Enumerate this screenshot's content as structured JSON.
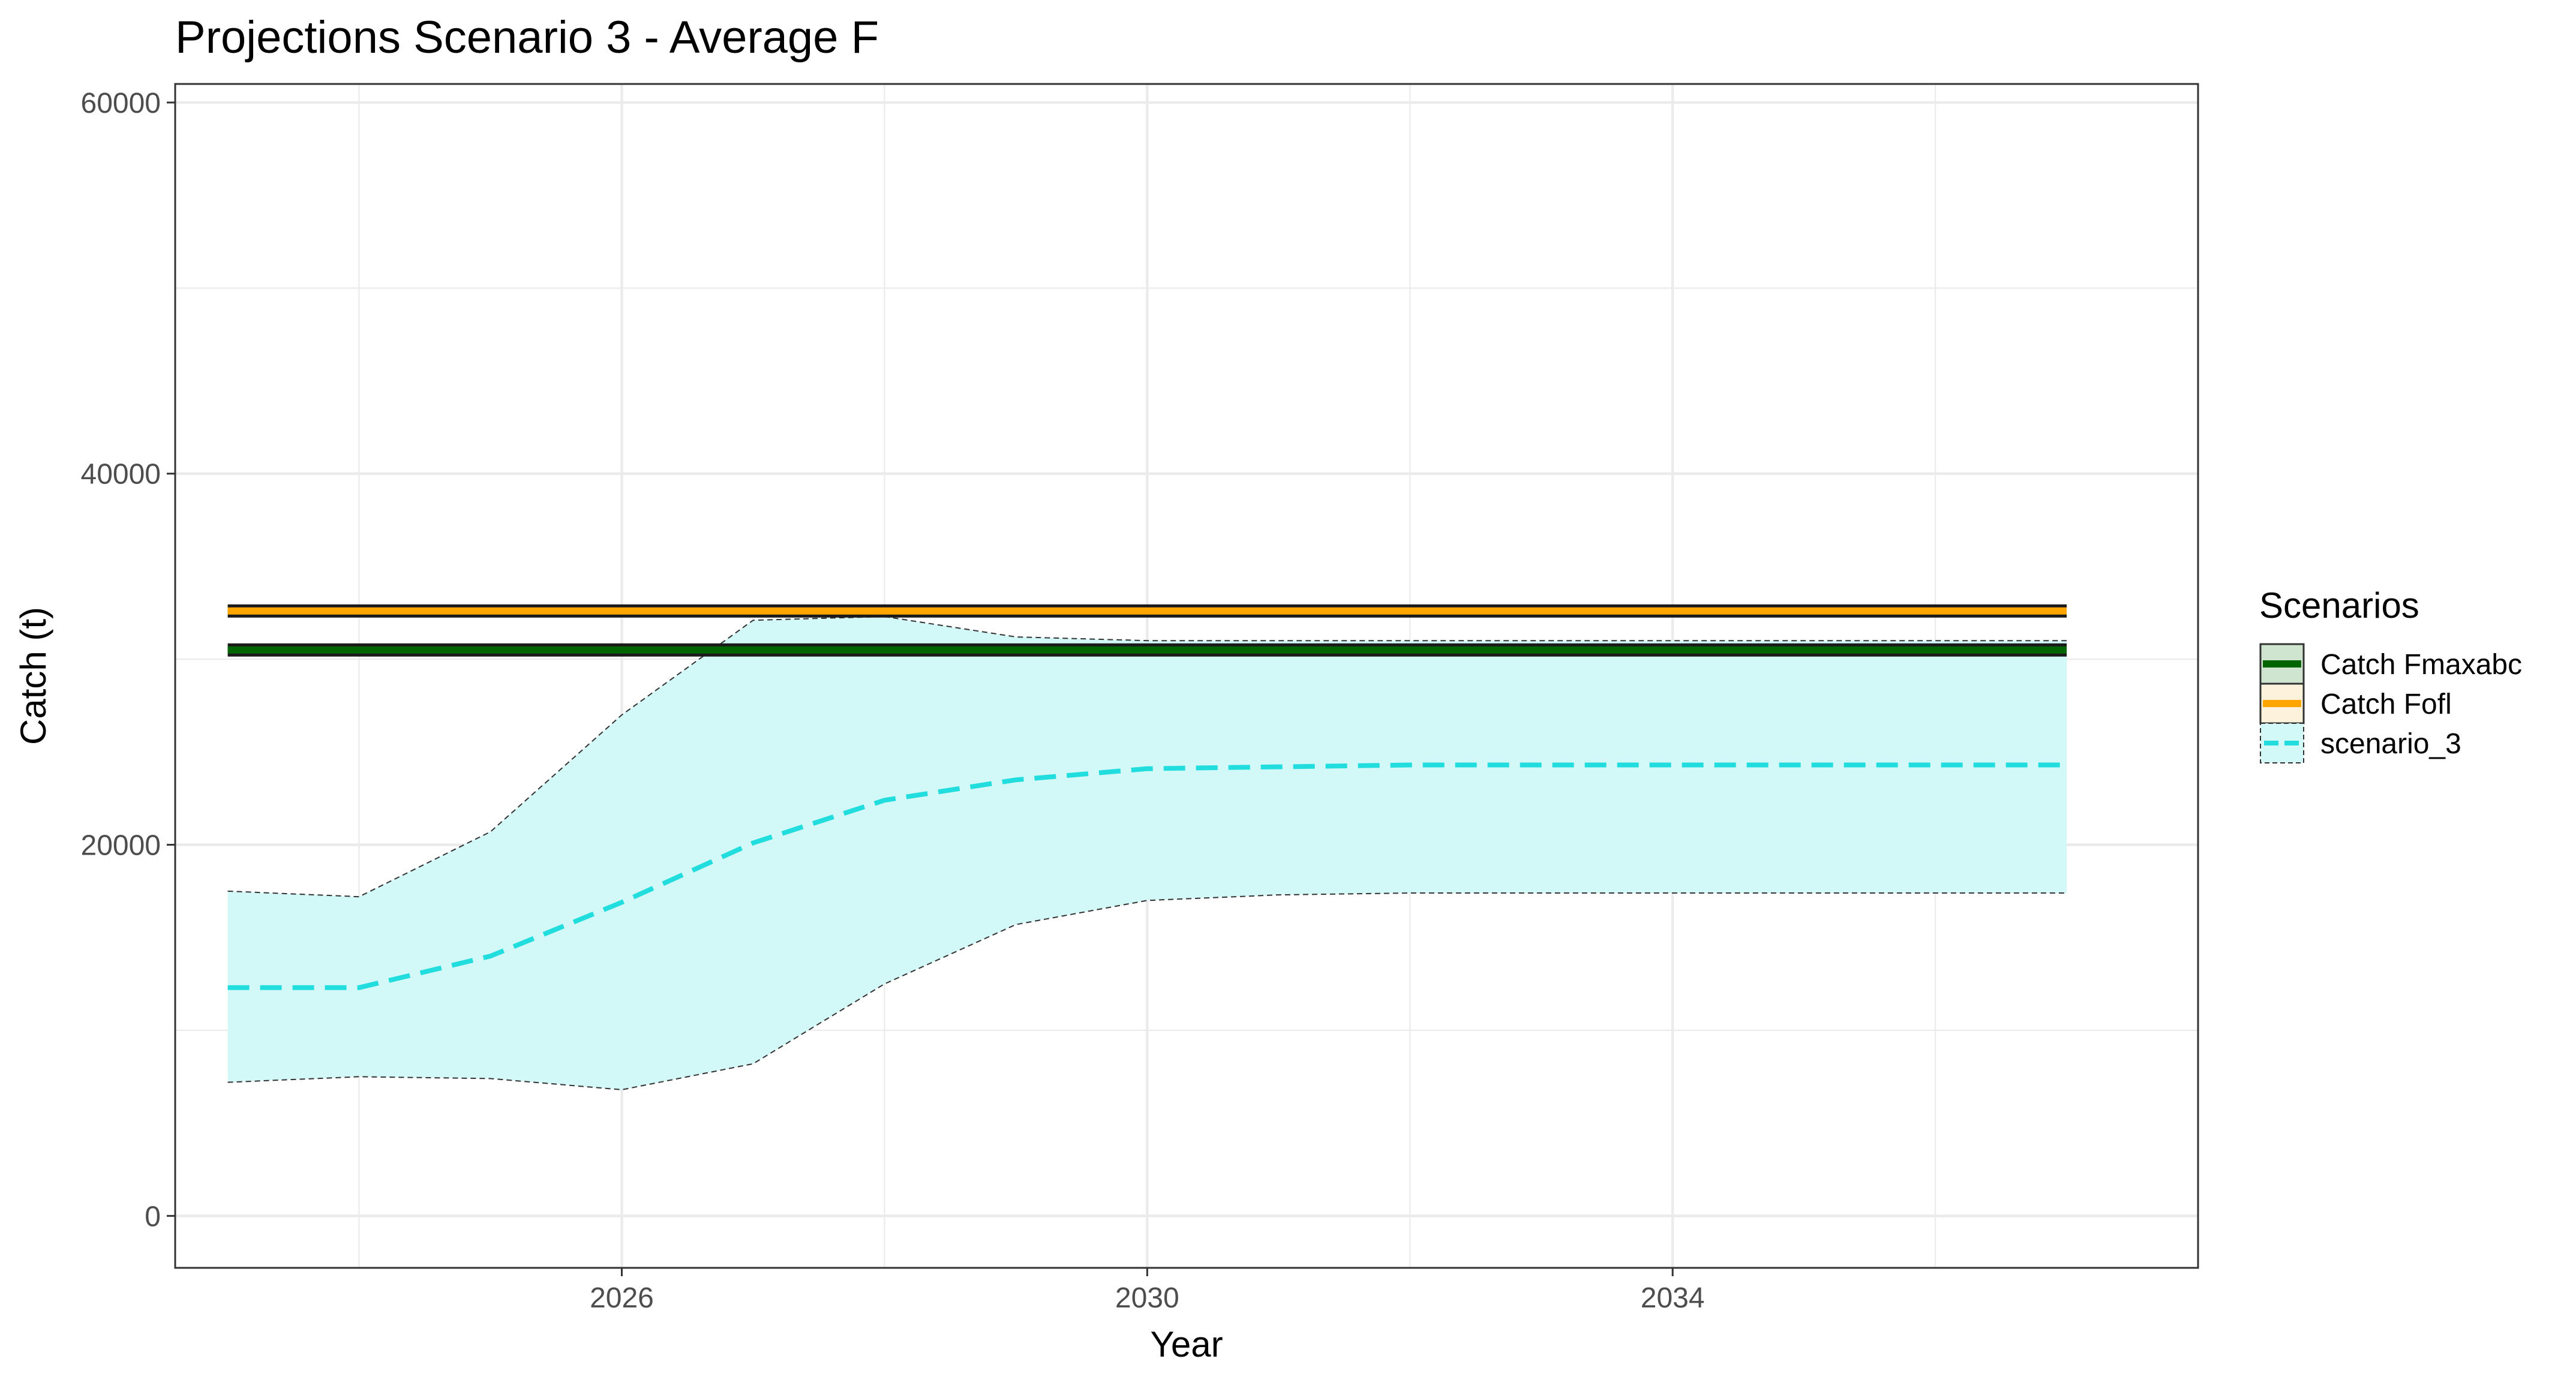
{
  "chart_data": {
    "type": "line",
    "title": "Projections Scenario 3 - Average F",
    "xlabel": "Year",
    "ylabel": "Catch (t)",
    "xlim": [
      2022.6,
      2038.0
    ],
    "ylim": [
      -2800,
      61000
    ],
    "x_ticks": [
      2026,
      2030,
      2034
    ],
    "x_minor_ticks": [
      2024,
      2028,
      2032,
      2036
    ],
    "y_ticks": [
      0,
      20000,
      40000,
      60000
    ],
    "y_minor_ticks": [
      10000,
      30000,
      50000
    ],
    "grid": true,
    "legend_title": "Scenarios",
    "legend_position": "right",
    "x": [
      2023,
      2024,
      2025,
      2026,
      2027,
      2028,
      2029,
      2030,
      2031,
      2032,
      2033,
      2034,
      2035,
      2036,
      2037
    ],
    "series": [
      {
        "name": "Catch Fmaxabc",
        "style": "solid",
        "color": "#006400",
        "values": [
          30500,
          30500,
          30500,
          30500,
          30500,
          30500,
          30500,
          30500,
          30500,
          30500,
          30500,
          30500,
          30500,
          30500,
          30500
        ]
      },
      {
        "name": "Catch Fofl",
        "style": "solid",
        "color": "#FFA500",
        "values": [
          32600,
          32600,
          32600,
          32600,
          32600,
          32600,
          32600,
          32600,
          32600,
          32600,
          32600,
          32600,
          32600,
          32600,
          32600
        ]
      },
      {
        "name": "scenario_3",
        "style": "dashed",
        "color": "#22DDDD",
        "fill": "#D3F8F8",
        "values": [
          12300,
          12300,
          14000,
          16900,
          20100,
          22400,
          23500,
          24100,
          24200,
          24300,
          24300,
          24300,
          24300,
          24300,
          24300
        ],
        "lower": [
          7200,
          7500,
          7400,
          6800,
          8200,
          12500,
          15700,
          17000,
          17300,
          17400,
          17400,
          17400,
          17400,
          17400,
          17400
        ],
        "upper": [
          17500,
          17200,
          20700,
          27000,
          32100,
          32300,
          31200,
          31000,
          31000,
          31000,
          31000,
          31000,
          31000,
          31000,
          31000
        ]
      }
    ]
  }
}
